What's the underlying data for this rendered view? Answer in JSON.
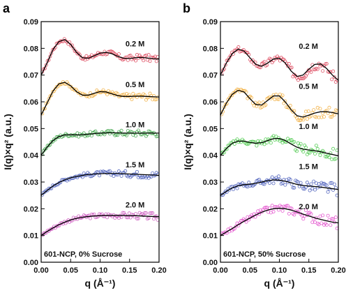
{
  "chart_data": [
    {
      "type": "scatter",
      "panel": "a",
      "annotation": "601-NCP, 0% Sucrose",
      "xlabel": "q (Å⁻¹)",
      "ylabel": "I(q)×q² (a.u.)",
      "xlim": [
        0.0,
        0.2
      ],
      "ylim": [
        0.0,
        0.09
      ],
      "xticks": [
        "0.00",
        "0.05",
        "0.10",
        "0.15",
        "0.20"
      ],
      "yticks": [
        "0.00",
        "0.01",
        "0.02",
        "0.03",
        "0.04",
        "0.05",
        "0.06",
        "0.07",
        "0.08",
        "0.09"
      ],
      "series": [
        {
          "name": "0.2 M",
          "color": "#d9364d",
          "fit": [
            [
              0.0,
              0.07
            ],
            [
              0.01,
              0.0745
            ],
            [
              0.02,
              0.0795
            ],
            [
              0.03,
              0.0825
            ],
            [
              0.04,
              0.0833
            ],
            [
              0.05,
              0.0815
            ],
            [
              0.06,
              0.0785
            ],
            [
              0.07,
              0.0765
            ],
            [
              0.08,
              0.0763
            ],
            [
              0.09,
              0.0772
            ],
            [
              0.1,
              0.0782
            ],
            [
              0.11,
              0.0785
            ],
            [
              0.12,
              0.078
            ],
            [
              0.13,
              0.077
            ],
            [
              0.14,
              0.0763
            ],
            [
              0.15,
              0.0762
            ],
            [
              0.16,
              0.0765
            ],
            [
              0.17,
              0.0766
            ],
            [
              0.18,
              0.0764
            ],
            [
              0.19,
              0.0761
            ],
            [
              0.2,
              0.076
            ]
          ]
        },
        {
          "name": "0.5 M",
          "color": "#f0a830",
          "fit": [
            [
              0.0,
              0.055
            ],
            [
              0.01,
              0.0595
            ],
            [
              0.02,
              0.064
            ],
            [
              0.03,
              0.0667
            ],
            [
              0.04,
              0.0673
            ],
            [
              0.05,
              0.066
            ],
            [
              0.06,
              0.0638
            ],
            [
              0.07,
              0.0625
            ],
            [
              0.08,
              0.0625
            ],
            [
              0.09,
              0.0632
            ],
            [
              0.1,
              0.0638
            ],
            [
              0.11,
              0.0637
            ],
            [
              0.12,
              0.063
            ],
            [
              0.13,
              0.0623
            ],
            [
              0.14,
              0.062
            ],
            [
              0.15,
              0.062
            ],
            [
              0.16,
              0.0621
            ],
            [
              0.17,
              0.0621
            ],
            [
              0.18,
              0.062
            ],
            [
              0.19,
              0.0619
            ],
            [
              0.2,
              0.0618
            ]
          ]
        },
        {
          "name": "1.0 M",
          "color": "#2e9e3a",
          "fit": [
            [
              0.0,
              0.04
            ],
            [
              0.01,
              0.043
            ],
            [
              0.02,
              0.0455
            ],
            [
              0.03,
              0.047
            ],
            [
              0.04,
              0.0476
            ],
            [
              0.05,
              0.0477
            ],
            [
              0.06,
              0.0476
            ],
            [
              0.07,
              0.0477
            ],
            [
              0.08,
              0.0479
            ],
            [
              0.09,
              0.0481
            ],
            [
              0.1,
              0.0483
            ],
            [
              0.11,
              0.0484
            ],
            [
              0.12,
              0.0484
            ],
            [
              0.13,
              0.0484
            ],
            [
              0.14,
              0.0483
            ],
            [
              0.15,
              0.0483
            ],
            [
              0.16,
              0.0483
            ],
            [
              0.17,
              0.0483
            ],
            [
              0.18,
              0.0483
            ],
            [
              0.19,
              0.0483
            ],
            [
              0.2,
              0.0483
            ]
          ]
        },
        {
          "name": "1.5 M",
          "color": "#3a4fb5",
          "fit": [
            [
              0.0,
              0.025
            ],
            [
              0.01,
              0.0268
            ],
            [
              0.02,
              0.0285
            ],
            [
              0.03,
              0.0298
            ],
            [
              0.04,
              0.0308
            ],
            [
              0.05,
              0.0316
            ],
            [
              0.06,
              0.0321
            ],
            [
              0.07,
              0.0325
            ],
            [
              0.08,
              0.0328
            ],
            [
              0.09,
              0.033
            ],
            [
              0.1,
              0.0331
            ],
            [
              0.11,
              0.0332
            ],
            [
              0.12,
              0.0332
            ],
            [
              0.13,
              0.0332
            ],
            [
              0.14,
              0.0331
            ],
            [
              0.15,
              0.033
            ],
            [
              0.16,
              0.0329
            ],
            [
              0.17,
              0.0328
            ],
            [
              0.18,
              0.0327
            ],
            [
              0.19,
              0.0326
            ],
            [
              0.2,
              0.0325
            ]
          ]
        },
        {
          "name": "2.0 M",
          "color": "#c84ab8",
          "fit": [
            [
              0.0,
              0.01
            ],
            [
              0.01,
              0.0115
            ],
            [
              0.02,
              0.0128
            ],
            [
              0.03,
              0.014
            ],
            [
              0.04,
              0.015
            ],
            [
              0.05,
              0.0158
            ],
            [
              0.06,
              0.0164
            ],
            [
              0.07,
              0.0168
            ],
            [
              0.08,
              0.0171
            ],
            [
              0.09,
              0.0173
            ],
            [
              0.1,
              0.0174
            ],
            [
              0.11,
              0.0175
            ],
            [
              0.12,
              0.0175
            ],
            [
              0.13,
              0.0175
            ],
            [
              0.14,
              0.0175
            ],
            [
              0.15,
              0.0174
            ],
            [
              0.16,
              0.0174
            ],
            [
              0.17,
              0.0173
            ],
            [
              0.18,
              0.0172
            ],
            [
              0.19,
              0.0171
            ],
            [
              0.2,
              0.017
            ]
          ]
        }
      ]
    },
    {
      "type": "scatter",
      "panel": "b",
      "annotation": "601-NCP, 50% Sucrose",
      "xlabel": "q (Å⁻¹)",
      "ylabel": "I(q)×q² (a.u.)",
      "xlim": [
        0.0,
        0.2
      ],
      "ylim": [
        0.0,
        0.09
      ],
      "xticks": [
        "0.00",
        "0.05",
        "0.10",
        "0.15",
        "0.20"
      ],
      "yticks": [
        "0.00",
        "0.01",
        "0.02",
        "0.03",
        "0.04",
        "0.05",
        "0.06",
        "0.07",
        "0.08",
        "0.09"
      ],
      "series": [
        {
          "name": "0.2 M",
          "color": "#d9364d",
          "fit": [
            [
              0.0,
              0.07
            ],
            [
              0.01,
              0.0745
            ],
            [
              0.02,
              0.078
            ],
            [
              0.03,
              0.0797
            ],
            [
              0.04,
              0.079
            ],
            [
              0.05,
              0.0765
            ],
            [
              0.06,
              0.074
            ],
            [
              0.07,
              0.0733
            ],
            [
              0.08,
              0.0745
            ],
            [
              0.09,
              0.076
            ],
            [
              0.1,
              0.0763
            ],
            [
              0.11,
              0.0745
            ],
            [
              0.12,
              0.0715
            ],
            [
              0.13,
              0.0695
            ],
            [
              0.14,
              0.07
            ],
            [
              0.15,
              0.0722
            ],
            [
              0.16,
              0.074
            ],
            [
              0.17,
              0.0742
            ],
            [
              0.18,
              0.0725
            ],
            [
              0.19,
              0.07
            ],
            [
              0.2,
              0.068
            ]
          ]
        },
        {
          "name": "0.5 M",
          "color": "#f0a830",
          "fit": [
            [
              0.0,
              0.055
            ],
            [
              0.01,
              0.0595
            ],
            [
              0.02,
              0.0628
            ],
            [
              0.03,
              0.0643
            ],
            [
              0.04,
              0.0637
            ],
            [
              0.05,
              0.0612
            ],
            [
              0.06,
              0.059
            ],
            [
              0.07,
              0.0588
            ],
            [
              0.08,
              0.0605
            ],
            [
              0.09,
              0.0622
            ],
            [
              0.1,
              0.0622
            ],
            [
              0.11,
              0.06
            ],
            [
              0.12,
              0.057
            ],
            [
              0.13,
              0.0548
            ],
            [
              0.14,
              0.0543
            ],
            [
              0.15,
              0.055
            ],
            [
              0.16,
              0.0558
            ],
            [
              0.17,
              0.0563
            ],
            [
              0.18,
              0.0563
            ],
            [
              0.19,
              0.056
            ],
            [
              0.2,
              0.0555
            ]
          ]
        },
        {
          "name": "1.0 M",
          "color": "#3cc43c",
          "fit": [
            [
              0.0,
              0.04
            ],
            [
              0.01,
              0.0425
            ],
            [
              0.02,
              0.0445
            ],
            [
              0.03,
              0.0453
            ],
            [
              0.04,
              0.0453
            ],
            [
              0.05,
              0.0448
            ],
            [
              0.06,
              0.0445
            ],
            [
              0.07,
              0.0447
            ],
            [
              0.08,
              0.0455
            ],
            [
              0.09,
              0.0462
            ],
            [
              0.1,
              0.0463
            ],
            [
              0.11,
              0.0455
            ],
            [
              0.12,
              0.0442
            ],
            [
              0.13,
              0.043
            ],
            [
              0.14,
              0.0423
            ],
            [
              0.15,
              0.042
            ],
            [
              0.16,
              0.0417
            ],
            [
              0.17,
              0.0413
            ],
            [
              0.18,
              0.0408
            ],
            [
              0.19,
              0.0403
            ],
            [
              0.2,
              0.0398
            ]
          ]
        },
        {
          "name": "1.5 M",
          "color": "#3a4fb5",
          "fit": [
            [
              0.0,
              0.025
            ],
            [
              0.01,
              0.0265
            ],
            [
              0.02,
              0.0278
            ],
            [
              0.03,
              0.0286
            ],
            [
              0.04,
              0.029
            ],
            [
              0.05,
              0.0292
            ],
            [
              0.06,
              0.0295
            ],
            [
              0.07,
              0.03
            ],
            [
              0.08,
              0.0305
            ],
            [
              0.09,
              0.0308
            ],
            [
              0.1,
              0.0307
            ],
            [
              0.11,
              0.0303
            ],
            [
              0.12,
              0.0297
            ],
            [
              0.13,
              0.0291
            ],
            [
              0.14,
              0.0287
            ],
            [
              0.15,
              0.0285
            ],
            [
              0.16,
              0.0283
            ],
            [
              0.17,
              0.0281
            ],
            [
              0.18,
              0.0278
            ],
            [
              0.19,
              0.0275
            ],
            [
              0.2,
              0.0272
            ]
          ]
        },
        {
          "name": "2.0 M",
          "color": "#e040c8",
          "fit": [
            [
              0.0,
              0.01
            ],
            [
              0.01,
              0.0113
            ],
            [
              0.02,
              0.0126
            ],
            [
              0.03,
              0.014
            ],
            [
              0.04,
              0.0153
            ],
            [
              0.05,
              0.0165
            ],
            [
              0.06,
              0.0177
            ],
            [
              0.07,
              0.0187
            ],
            [
              0.08,
              0.0195
            ],
            [
              0.09,
              0.02
            ],
            [
              0.1,
              0.0202
            ],
            [
              0.11,
              0.02
            ],
            [
              0.12,
              0.0195
            ],
            [
              0.13,
              0.0188
            ],
            [
              0.14,
              0.018
            ],
            [
              0.15,
              0.0173
            ],
            [
              0.16,
              0.0166
            ],
            [
              0.17,
              0.016
            ],
            [
              0.18,
              0.0155
            ],
            [
              0.19,
              0.015
            ],
            [
              0.2,
              0.0147
            ]
          ]
        }
      ]
    }
  ]
}
